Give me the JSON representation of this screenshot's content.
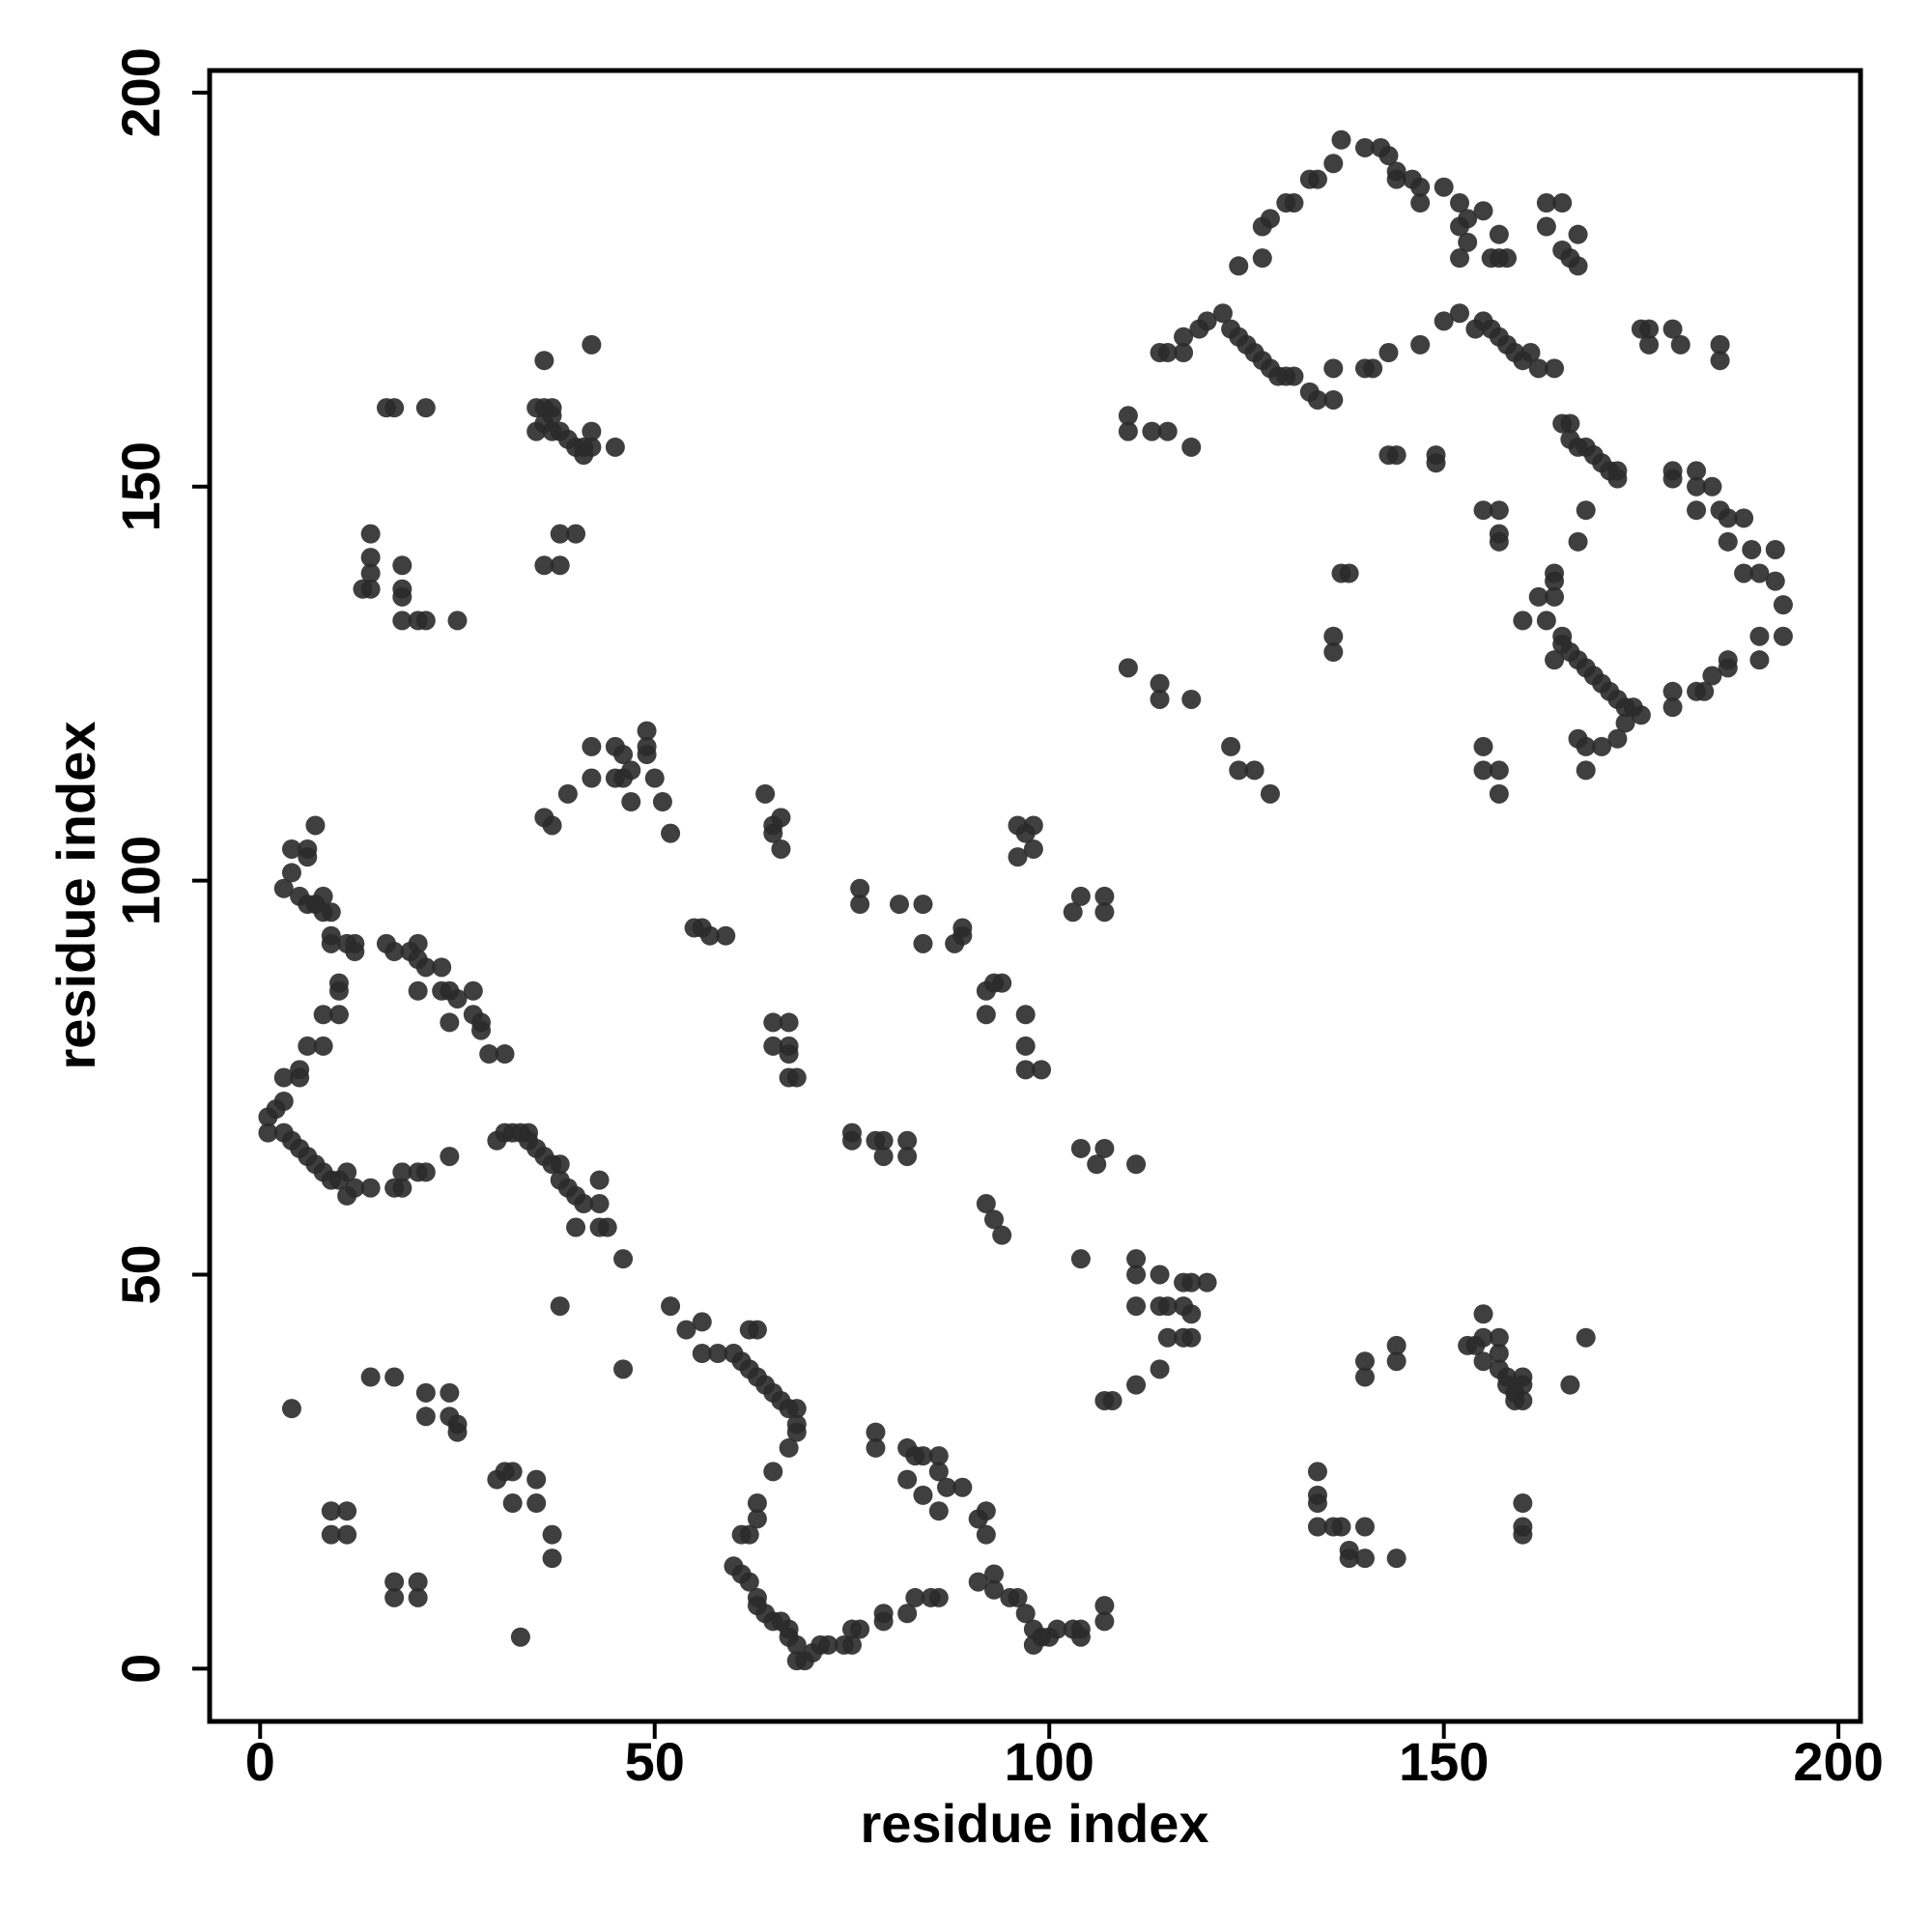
{
  "chart_data": {
    "type": "scatter",
    "xlabel": "residue index",
    "ylabel": "residue index",
    "color": "#2a2a2a",
    "xlim": [
      -6.4,
      202.8
    ],
    "ylim": [
      -6.7,
      202.8
    ],
    "xticks": [
      0,
      50,
      100,
      150,
      200
    ],
    "yticks": [
      0,
      50,
      100,
      150,
      200
    ],
    "x": [
      3,
      4,
      4,
      6,
      6,
      5,
      6,
      7,
      8,
      9,
      8,
      7,
      9,
      9,
      11,
      12,
      12,
      10,
      10,
      8,
      10,
      8,
      6,
      5,
      5,
      3,
      3,
      2,
      1,
      1,
      3,
      4,
      5,
      6,
      7,
      8,
      9,
      10,
      11,
      12,
      11,
      14,
      17,
      18,
      18,
      20,
      21,
      24,
      19,
      17,
      16,
      20,
      20,
      21,
      20,
      23,
      23,
      24,
      25,
      24,
      27,
      27,
      28,
      28,
      29,
      31,
      31,
      32,
      33,
      34,
      34,
      35,
      36,
      37,
      38,
      38,
      39,
      40,
      41,
      40,
      43,
      43,
      43,
      44,
      46,
      30,
      52,
      54,
      56,
      56,
      58,
      60,
      61,
      62,
      62,
      63,
      63,
      64,
      65,
      66,
      67,
      68,
      68,
      68,
      67,
      65,
      63,
      63,
      62,
      61,
      60,
      61,
      62,
      63,
      63,
      64,
      65,
      66,
      67,
      67,
      68,
      68,
      69,
      70,
      71,
      72,
      74,
      75,
      75,
      76,
      79,
      79,
      82,
      83,
      85,
      86,
      87,
      86,
      86,
      84,
      83,
      82,
      82,
      84,
      86,
      89,
      91,
      92,
      92,
      93,
      91,
      93,
      95,
      96,
      97,
      98,
      99,
      98,
      100,
      101,
      103,
      104,
      104,
      107,
      107,
      78,
      78,
      117,
      119,
      120,
      122,
      123,
      124,
      125,
      126,
      127,
      128,
      129,
      130,
      131,
      133,
      134,
      136,
      136,
      140,
      141,
      143,
      117,
      115,
      114,
      110,
      110,
      113,
      115,
      118,
      124,
      127,
      127,
      128,
      130,
      131,
      133,
      134,
      136,
      137,
      140,
      142,
      143,
      144,
      144,
      146,
      147,
      147,
      150,
      152,
      152,
      153,
      153,
      152,
      155,
      157,
      158,
      157,
      156,
      152,
      154,
      155,
      156,
      157,
      158,
      159,
      160,
      161,
      162,
      164,
      150,
      147,
      143,
      144,
      149,
      149,
      155,
      157,
      157,
      157,
      165,
      166,
      166,
      167,
      168,
      169,
      170,
      171,
      172,
      172,
      168,
      167,
      164,
      164,
      164,
      162,
      163,
      160,
      165,
      165,
      166,
      167,
      168,
      169,
      170,
      171,
      172,
      173,
      174,
      175,
      173,
      172,
      170,
      168,
      168,
      167,
      164,
      163,
      163,
      165,
      166,
      167,
      167,
      165,
      175,
      176,
      176,
      179,
      180,
      179,
      179,
      182,
      182,
      182,
      184,
      185,
      186,
      186,
      188,
      189,
      188,
      190,
      192,
      192,
      193,
      193,
      190,
      190,
      186,
      186,
      184,
      183,
      182,
      179,
      179,
      185,
      185,
      110,
      114,
      114,
      118,
      123,
      124,
      126,
      128,
      137,
      138,
      136,
      136,
      155,
      155,
      157,
      157,
      16,
      17,
      21,
      35,
      36,
      37,
      37,
      36,
      35,
      37,
      38,
      39,
      40,
      41,
      42,
      42,
      41,
      45,
      36,
      42,
      14,
      14,
      14,
      13,
      14,
      18,
      18,
      18,
      18,
      20,
      21,
      25,
      38,
      36,
      38,
      40,
      42,
      45,
      46,
      49,
      49,
      49,
      47,
      46,
      45,
      42,
      47,
      51,
      50,
      52,
      39,
      37,
      36,
      64,
      65,
      66,
      65,
      66,
      76,
      76,
      81,
      84,
      84,
      88,
      89,
      89,
      55,
      56,
      57,
      59,
      65,
      67,
      65,
      67,
      67,
      68,
      67,
      75,
      75,
      78,
      79,
      79,
      82,
      82,
      92,
      93,
      94,
      92,
      97,
      97,
      97,
      99,
      96,
      97,
      98,
      98,
      96,
      103,
      104,
      107,
      107,
      104,
      106,
      107,
      111,
      92,
      93,
      94,
      104,
      111,
      111,
      111,
      114,
      114,
      115,
      115,
      114,
      117,
      118,
      117,
      117,
      118,
      118,
      120,
      108,
      107,
      111,
      4,
      14,
      17,
      21,
      21,
      24,
      24,
      25,
      25,
      30,
      31,
      32,
      32,
      35,
      35,
      37,
      37,
      9,
      11,
      11,
      9,
      17,
      20,
      17,
      20,
      33,
      38,
      46,
      134,
      134,
      134,
      134,
      136,
      137,
      138,
      138,
      140,
      140,
      144,
      140,
      140,
      144,
      144,
      153,
      154,
      155,
      155,
      155,
      157,
      157,
      157,
      158,
      158,
      159,
      159,
      160,
      160,
      160,
      166,
      168,
      160,
      160,
      160
    ],
    "values": [
      99,
      101,
      104,
      104,
      103,
      98,
      97,
      97,
      96,
      96,
      98,
      107,
      93,
      92,
      92,
      92,
      91,
      87,
      86,
      83,
      83,
      79,
      79,
      76,
      75,
      75,
      72,
      71,
      70,
      68,
      68,
      67,
      66,
      65,
      64,
      63,
      62,
      62,
      63,
      61,
      60,
      61,
      61,
      61,
      63,
      63,
      63,
      65,
      91,
      91,
      92,
      92,
      90,
      89,
      86,
      89,
      86,
      86,
      85,
      82,
      86,
      83,
      82,
      81,
      78,
      78,
      68,
      68,
      68,
      67,
      68,
      66,
      65,
      64,
      64,
      62,
      61,
      60,
      59,
      56,
      62,
      59,
      56,
      56,
      52,
      67,
      46,
      43,
      44,
      40,
      40,
      40,
      39,
      38,
      43,
      43,
      37,
      36,
      35,
      34,
      33,
      33,
      31,
      30,
      28,
      25,
      21,
      19,
      17,
      17,
      13,
      12,
      11,
      9,
      8,
      7,
      6,
      6,
      5,
      4,
      3,
      1,
      1,
      2,
      3,
      3,
      3,
      3,
      5,
      5,
      6,
      7,
      7,
      9,
      9,
      9,
      23,
      25,
      27,
      27,
      27,
      28,
      24,
      22,
      20,
      23,
      19,
      20,
      17,
      12,
      11,
      10,
      9,
      9,
      7,
      5,
      4,
      3,
      4,
      5,
      5,
      5,
      4,
      6,
      8,
      28,
      30,
      169,
      170,
      171,
      172,
      170,
      169,
      168,
      167,
      166,
      165,
      164,
      164,
      164,
      162,
      161,
      161,
      165,
      165,
      165,
      167,
      167,
      167,
      167,
      157,
      159,
      157,
      157,
      155,
      178,
      179,
      183,
      184,
      186,
      186,
      189,
      189,
      191,
      194,
      193,
      193,
      192,
      189,
      190,
      189,
      188,
      186,
      188,
      186,
      183,
      184,
      181,
      179,
      185,
      182,
      179,
      179,
      179,
      172,
      170,
      171,
      170,
      169,
      168,
      167,
      166,
      167,
      165,
      165,
      171,
      168,
      154,
      154,
      154,
      153,
      147,
      147,
      144,
      143,
      158,
      158,
      156,
      155,
      155,
      154,
      153,
      152,
      151,
      152,
      147,
      143,
      139,
      138,
      136,
      136,
      133,
      133,
      131,
      130,
      129,
      128,
      127,
      126,
      125,
      124,
      123,
      122,
      122,
      121,
      120,
      118,
      117,
      117,
      114,
      118,
      128,
      186,
      183,
      180,
      179,
      178,
      182,
      186,
      170,
      170,
      168,
      170,
      168,
      152,
      151,
      152,
      150,
      147,
      150,
      147,
      146,
      143,
      146,
      142,
      139,
      139,
      142,
      138,
      135,
      131,
      131,
      128,
      127,
      128,
      126,
      124,
      124,
      124,
      122,
      168,
      166,
      127,
      125,
      123,
      123,
      117,
      114,
      114,
      111,
      139,
      139,
      131,
      129,
      117,
      114,
      114,
      111,
      160,
      160,
      160,
      160,
      160,
      160,
      159,
      158,
      157,
      157,
      157,
      156,
      155,
      155,
      155,
      157,
      154,
      155,
      166,
      168,
      144,
      141,
      139,
      137,
      137,
      140,
      137,
      136,
      133,
      133,
      133,
      133,
      140,
      140,
      144,
      144,
      117,
      117,
      116,
      117,
      116,
      119,
      114,
      113,
      113,
      113,
      110,
      110,
      113,
      106,
      111,
      107,
      108,
      111,
      107,
      108,
      106,
      104,
      99,
      97,
      97,
      97,
      92,
      92,
      93,
      94,
      94,
      94,
      93,
      93,
      82,
      82,
      79,
      79,
      78,
      75,
      75,
      68,
      67,
      67,
      67,
      65,
      67,
      65,
      86,
      87,
      87,
      83,
      83,
      79,
      76,
      76,
      107,
      106,
      107,
      104,
      103,
      96,
      98,
      98,
      96,
      66,
      64,
      66,
      64,
      59,
      57,
      55,
      52,
      52,
      50,
      46,
      50,
      46,
      46,
      42,
      38,
      49,
      49,
      46,
      42,
      42,
      45,
      49,
      34,
      34,
      36,
      33,
      37,
      37,
      35,
      32,
      35,
      32,
      31,
      30,
      24,
      25,
      25,
      21,
      24,
      21,
      17,
      14,
      20,
      20,
      17,
      17,
      11,
      11,
      9,
      9,
      4,
      46,
      38,
      25,
      22,
      21,
      18,
      18,
      18,
      15,
      14,
      14,
      18,
      14,
      39,
      37,
      41,
      39,
      41,
      41,
      45,
      42,
      39,
      42,
      40,
      38,
      37,
      36,
      35,
      34,
      37,
      34,
      36,
      36,
      42,
      21,
      18,
      17
    ]
  }
}
